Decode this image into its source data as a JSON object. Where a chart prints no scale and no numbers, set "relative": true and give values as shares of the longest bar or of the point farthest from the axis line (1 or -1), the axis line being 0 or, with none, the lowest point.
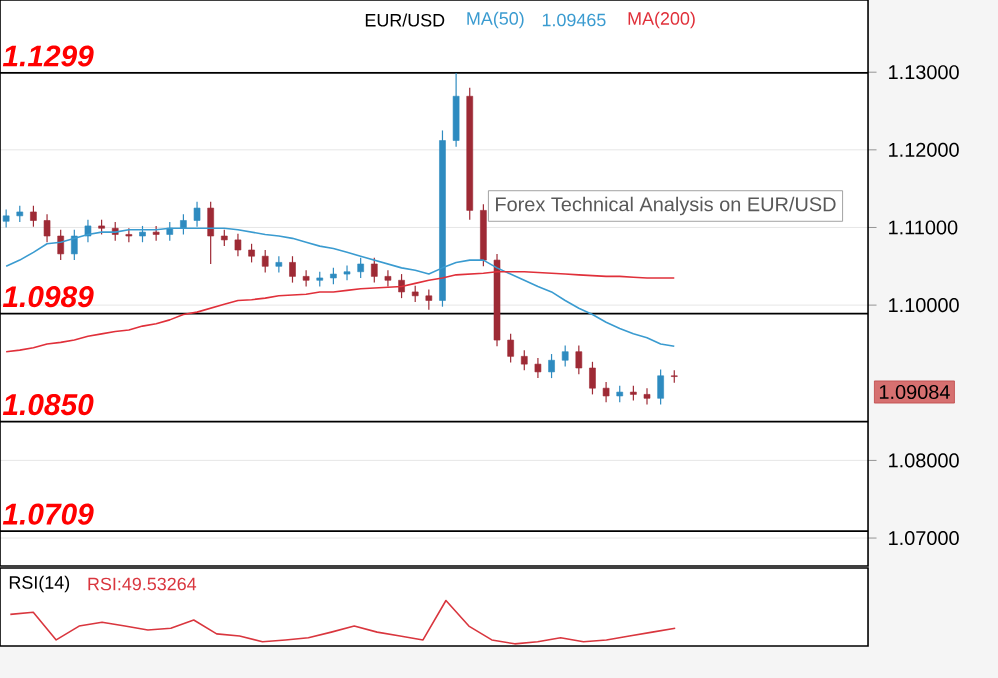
{
  "chart_data": [
    {
      "type": "candlestick",
      "title": "EUR/USD",
      "categories": [
        null,
        null,
        null,
        null,
        null,
        null,
        null,
        null,
        null,
        null,
        null,
        null,
        null,
        null,
        null,
        null,
        null,
        null,
        null,
        null,
        null,
        null,
        null,
        null,
        null,
        null,
        null,
        null,
        null,
        null,
        null,
        null,
        null,
        null,
        null,
        null,
        null,
        null,
        null,
        null,
        null,
        null,
        null,
        null,
        null,
        null,
        null,
        null,
        null,
        null
      ],
      "ohlc": [
        [
          1.1108,
          1.1123,
          1.11,
          1.1115
        ],
        [
          1.1115,
          1.1128,
          1.1107,
          1.112
        ],
        [
          1.112,
          1.1128,
          1.1101,
          1.1109
        ],
        [
          1.1109,
          1.1117,
          1.1081,
          1.1089
        ],
        [
          1.1089,
          1.1097,
          1.1058,
          1.1066
        ],
        [
          1.1066,
          1.1097,
          1.1058,
          1.1089
        ],
        [
          1.1089,
          1.111,
          1.1081,
          1.1102
        ],
        [
          1.1102,
          1.111,
          1.1091,
          1.1099
        ],
        [
          1.1099,
          1.1107,
          1.1083,
          1.1091
        ],
        [
          1.1091,
          1.1099,
          1.1081,
          1.1089
        ],
        [
          1.1089,
          1.1102,
          1.1081,
          1.1094
        ],
        [
          1.1094,
          1.1102,
          1.1083,
          1.1091
        ],
        [
          1.1091,
          1.1107,
          1.1083,
          1.1099
        ],
        [
          1.1099,
          1.1117,
          1.1091,
          1.1109
        ],
        [
          1.1109,
          1.1133,
          1.1101,
          1.1125
        ],
        [
          1.1125,
          1.1133,
          1.1053,
          1.1089
        ],
        [
          1.1089,
          1.1097,
          1.1076,
          1.1084
        ],
        [
          1.1084,
          1.1092,
          1.1063,
          1.1071
        ],
        [
          1.1071,
          1.1079,
          1.1055,
          1.1063
        ],
        [
          1.1063,
          1.1071,
          1.1042,
          1.105
        ],
        [
          1.105,
          1.1063,
          1.1042,
          1.1055
        ],
        [
          1.1055,
          1.1063,
          1.1029,
          1.1037
        ],
        [
          1.1037,
          1.1045,
          1.1024,
          1.1032
        ],
        [
          1.1032,
          1.1043,
          1.1024,
          1.1035
        ],
        [
          1.1035,
          1.1048,
          1.1027,
          1.104
        ],
        [
          1.104,
          1.1051,
          1.1032,
          1.1043
        ],
        [
          1.1043,
          1.1061,
          1.1035,
          1.1053
        ],
        [
          1.1053,
          1.1061,
          1.1029,
          1.1037
        ],
        [
          1.1037,
          1.1045,
          1.1024,
          1.1032
        ],
        [
          1.1032,
          1.104,
          1.1009,
          1.1017
        ],
        [
          1.1017,
          1.1025,
          1.1004,
          1.1012
        ],
        [
          1.1012,
          1.102,
          1.0994,
          1.1006
        ],
        [
          1.1006,
          1.1225,
          1.0998,
          1.1212
        ],
        [
          1.1212,
          1.1299,
          1.1204,
          1.1269
        ],
        [
          1.1269,
          1.128,
          1.111,
          1.1122
        ],
        [
          1.1122,
          1.113,
          1.105,
          1.1058
        ],
        [
          1.1058,
          1.1066,
          1.0947,
          1.0955
        ],
        [
          1.0955,
          1.0963,
          1.0926,
          1.0934
        ],
        [
          1.0934,
          1.0942,
          1.0916,
          1.0924
        ],
        [
          1.0924,
          1.0932,
          1.0906,
          1.0914
        ],
        [
          1.0914,
          1.0937,
          1.0906,
          1.0929
        ],
        [
          1.0929,
          1.0948,
          1.0921,
          1.094
        ],
        [
          1.094,
          1.0948,
          1.0911,
          1.0919
        ],
        [
          1.0919,
          1.0927,
          1.0885,
          1.0893
        ],
        [
          1.0893,
          1.0901,
          1.0875,
          1.0883
        ],
        [
          1.0883,
          1.0896,
          1.0875,
          1.0888
        ],
        [
          1.0888,
          1.0896,
          1.0877,
          1.0885
        ],
        [
          1.0885,
          1.0893,
          1.0872,
          1.088
        ],
        [
          1.088,
          1.0917,
          1.0872,
          1.0909
        ],
        [
          1.0909,
          1.0916,
          1.09,
          1.0908
        ]
      ],
      "colors": [
        "#2e8bc0",
        "#2e8bc0",
        "#9e2a35",
        "#9e2a35",
        "#9e2a35",
        "#2e8bc0",
        "#2e8bc0",
        "#9e2a35",
        "#9e2a35",
        "#9e2a35",
        "#2e8bc0",
        "#9e2a35",
        "#2e8bc0",
        "#2e8bc0",
        "#2e8bc0",
        "#9e2a35",
        "#9e2a35",
        "#9e2a35",
        "#9e2a35",
        "#9e2a35",
        "#2e8bc0",
        "#9e2a35",
        "#9e2a35",
        "#2e8bc0",
        "#2e8bc0",
        "#2e8bc0",
        "#2e8bc0",
        "#9e2a35",
        "#9e2a35",
        "#9e2a35",
        "#9e2a35",
        "#9e2a35",
        "#2e8bc0",
        "#2e8bc0",
        "#9e2a35",
        "#9e2a35",
        "#9e2a35",
        "#9e2a35",
        "#9e2a35",
        "#9e2a35",
        "#2e8bc0",
        "#2e8bc0",
        "#9e2a35",
        "#9e2a35",
        "#9e2a35",
        "#2e8bc0",
        "#9e2a35",
        "#9e2a35",
        "#2e8bc0",
        "#9e2a35"
      ],
      "series": [
        {
          "type": "line",
          "name": "MA(50)",
          "color": "#3a9bd0",
          "values": [
            1.105,
            1.1058,
            1.1068,
            1.1079,
            1.1081,
            1.1086,
            1.1091,
            1.1094,
            1.1094,
            1.1097,
            1.1097,
            1.1097,
            1.1099,
            1.1099,
            1.1099,
            1.1099,
            1.1099,
            1.1097,
            1.1094,
            1.1091,
            1.1089,
            1.1086,
            1.1081,
            1.1076,
            1.1073,
            1.1068,
            1.1063,
            1.1058,
            1.1053,
            1.1048,
            1.1045,
            1.104,
            1.1048,
            1.1055,
            1.1058,
            1.1058,
            1.1048,
            1.104,
            1.1032,
            1.1024,
            1.1017,
            1.1006,
            1.0996,
            1.0988,
            1.0978,
            1.097,
            1.0963,
            1.0958,
            1.095,
            1.0947
          ]
        },
        {
          "type": "line",
          "name": "MA(200)",
          "color": "#e0303a",
          "values": [
            1.094,
            1.0942,
            1.0945,
            1.095,
            1.0952,
            1.0955,
            1.096,
            1.0963,
            1.0966,
            1.0968,
            1.0973,
            1.0976,
            1.0981,
            1.0988,
            1.0991,
            1.0996,
            1.1001,
            1.1006,
            1.1007,
            1.1009,
            1.1012,
            1.1013,
            1.1014,
            1.1017,
            1.1017,
            1.1019,
            1.1021,
            1.1022,
            1.1023,
            1.1024,
            1.1028,
            1.1032,
            1.1035,
            1.1039,
            1.104,
            1.1041,
            1.1043,
            1.1043,
            1.1043,
            1.1042,
            1.1041,
            1.104,
            1.1039,
            1.1038,
            1.1037,
            1.1037,
            1.1036,
            1.1035,
            1.1035,
            1.1035
          ]
        }
      ],
      "ylim": [
        1.0664,
        1.1393
      ],
      "yticks": [
        {
          "value": 1.07,
          "label": "1.07000"
        },
        {
          "value": 1.08,
          "label": "1.08000"
        },
        {
          "value": 1.1,
          "label": "1.10000"
        },
        {
          "value": 1.11,
          "label": "1.11000"
        },
        {
          "value": 1.12,
          "label": "1.12000"
        },
        {
          "value": 1.13,
          "label": "1.13000"
        }
      ],
      "grid": "y",
      "legend": "top",
      "tick_labels": "y",
      "ref_lines": [
        {
          "axis": "y",
          "value": 1.1299,
          "label": "1.1299",
          "color": "#000000"
        },
        {
          "axis": "y",
          "value": 1.0989,
          "label": "1.0989",
          "color": "#000000"
        },
        {
          "axis": "y",
          "value": 1.085,
          "label": "1.0850",
          "color": "#000000"
        },
        {
          "axis": "y",
          "value": 1.0709,
          "label": "1.0709",
          "color": "#000000"
        }
      ],
      "annotations": [
        "1.09465",
        "Forex Technical Analysis on EUR/USD",
        "1.09084"
      ]
    },
    {
      "type": "line",
      "title": "RSI(14)",
      "relative": true,
      "tick_labels": false,
      "legend": "top left",
      "categories": [
        null,
        null,
        null,
        null,
        null,
        null,
        null,
        null,
        null,
        null,
        null,
        null,
        null,
        null,
        null,
        null,
        null,
        null,
        null,
        null,
        null,
        null,
        null,
        null,
        null,
        null,
        null,
        null,
        null,
        null
      ],
      "series": [
        {
          "name": "RSI:49.53264",
          "color": "#d9363e",
          "values": [
            0.68,
            0.73,
            0.09,
            0.41,
            0.5,
            0.41,
            0.32,
            0.36,
            0.55,
            0.23,
            0.18,
            0.05,
            0.09,
            0.14,
            0.27,
            0.41,
            0.27,
            0.18,
            0.09,
            1,
            0.41,
            0.09,
            0,
            0.05,
            0.14,
            0.05,
            0.09,
            0.18,
            0.27,
            0.36
          ]
        }
      ]
    }
  ]
}
